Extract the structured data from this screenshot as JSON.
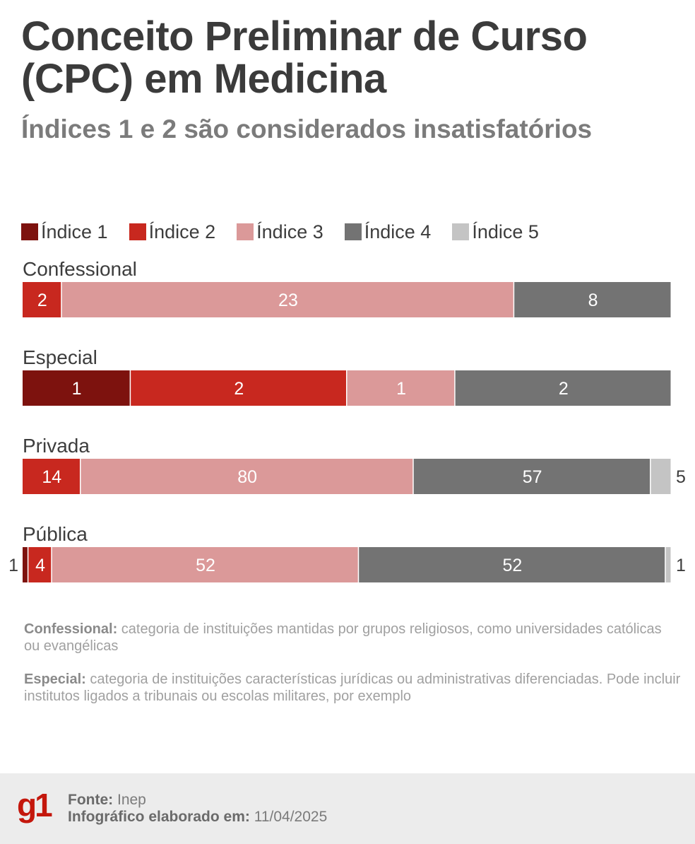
{
  "title": "Conceito Preliminar de Curso (CPC) em Medicina",
  "subtitle": "Índices 1 e 2 são considerados insatisfatórios",
  "legend": [
    {
      "label": "Índice 1",
      "color": "#7d120e"
    },
    {
      "label": "Índice 2",
      "color": "#c8281f"
    },
    {
      "label": "Índice 3",
      "color": "#db9999"
    },
    {
      "label": "Índice 4",
      "color": "#737373"
    },
    {
      "label": "Índice 5",
      "color": "#c4c4c4"
    }
  ],
  "chart_data": {
    "type": "bar",
    "orientation": "horizontal",
    "stacked": "100%",
    "categories": [
      "Confessional",
      "Especial",
      "Privada",
      "Pública"
    ],
    "series": [
      {
        "name": "Índice 1",
        "values": [
          0,
          1,
          0,
          1
        ]
      },
      {
        "name": "Índice 2",
        "values": [
          2,
          2,
          14,
          4
        ]
      },
      {
        "name": "Índice 3",
        "values": [
          23,
          1,
          80,
          52
        ]
      },
      {
        "name": "Índice 4",
        "values": [
          8,
          2,
          57,
          52
        ]
      },
      {
        "name": "Índice 5",
        "values": [
          0,
          0,
          5,
          1
        ]
      }
    ],
    "legend_position": "top-left",
    "grid": false
  },
  "notes": [
    {
      "term": "Confessional:",
      "text": " categoria de instituições mantidas por grupos religiosos, como universidades católicas ou evangélicas"
    },
    {
      "term": "Especial:",
      "text": " categoria de instituições características jurídicas ou administrativas diferenciadas. Pode incluir institutos ligados a tribunais ou escolas militares, por exemplo"
    }
  ],
  "footer": {
    "logo": "g1",
    "source_label": "Fonte:",
    "source_value": " Inep",
    "date_label": "Infográfico elaborado em:",
    "date_value": " 11/04/2025"
  }
}
